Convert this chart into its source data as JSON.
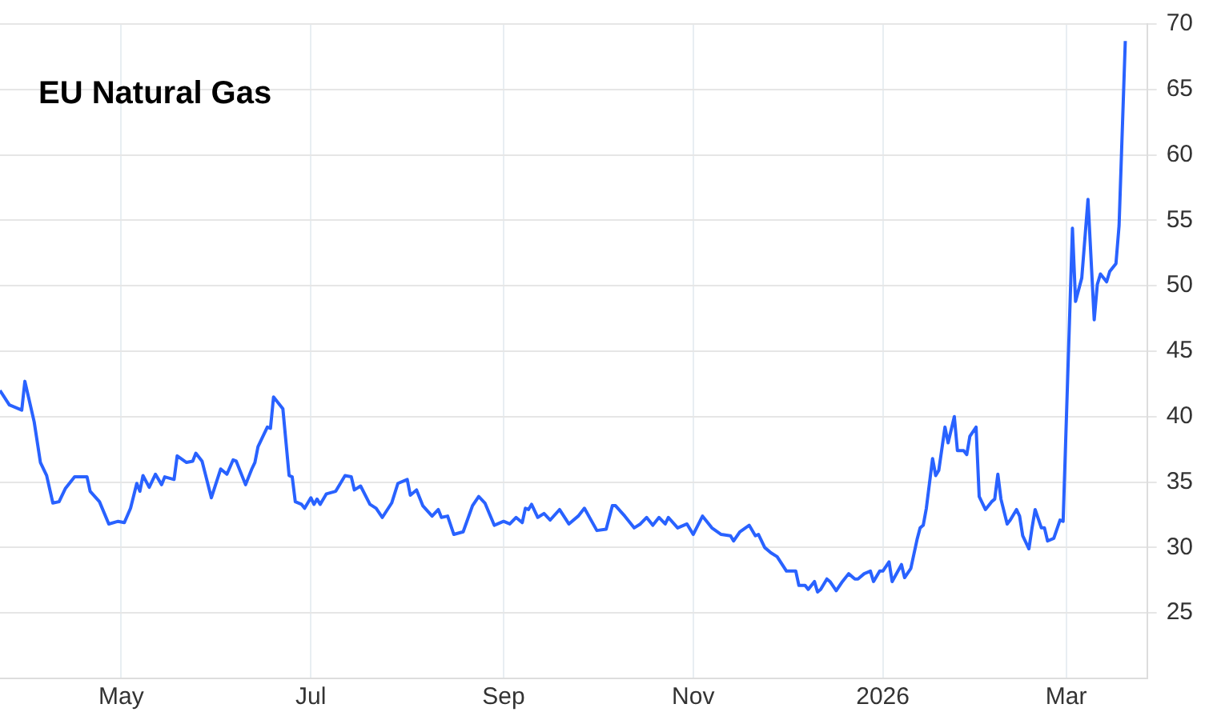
{
  "chart_data": {
    "type": "line",
    "title": "EU Natural Gas",
    "x": [
      "2025-03-23",
      "2025-03-26",
      "2025-03-30",
      "2025-03-31",
      "2025-04-03",
      "2025-04-05",
      "2025-04-07",
      "2025-04-09",
      "2025-04-11",
      "2025-04-13",
      "2025-04-16",
      "2025-04-20",
      "2025-04-21",
      "2025-04-24",
      "2025-04-27",
      "2025-04-30",
      "2025-05-02",
      "2025-05-04",
      "2025-05-06",
      "2025-05-07",
      "2025-05-08",
      "2025-05-10",
      "2025-05-12",
      "2025-05-14",
      "2025-05-15",
      "2025-05-18",
      "2025-05-19",
      "2025-05-22",
      "2025-05-24",
      "2025-05-25",
      "2025-05-27",
      "2025-05-30",
      "2025-06-02",
      "2025-06-04",
      "2025-06-06",
      "2025-06-07",
      "2025-06-10",
      "2025-06-12",
      "2025-06-13",
      "2025-06-14",
      "2025-06-17",
      "2025-06-18",
      "2025-06-19",
      "2025-06-22",
      "2025-06-24",
      "2025-06-25",
      "2025-06-26",
      "2025-06-28",
      "2025-06-29",
      "2025-07-01",
      "2025-07-02",
      "2025-07-03",
      "2025-07-04",
      "2025-07-06",
      "2025-07-09",
      "2025-07-12",
      "2025-07-14",
      "2025-07-15",
      "2025-07-17",
      "2025-07-20",
      "2025-07-22",
      "2025-07-24",
      "2025-07-27",
      "2025-07-29",
      "2025-08-01",
      "2025-08-02",
      "2025-08-04",
      "2025-08-06",
      "2025-08-09",
      "2025-08-11",
      "2025-08-12",
      "2025-08-14",
      "2025-08-16",
      "2025-08-19",
      "2025-08-22",
      "2025-08-24",
      "2025-08-26",
      "2025-08-29",
      "2025-09-01",
      "2025-09-03",
      "2025-09-05",
      "2025-09-07",
      "2025-09-08",
      "2025-09-09",
      "2025-09-10",
      "2025-09-12",
      "2025-09-14",
      "2025-09-16",
      "2025-09-19",
      "2025-09-22",
      "2025-09-25",
      "2025-09-27",
      "2025-10-01",
      "2025-10-04",
      "2025-10-06",
      "2025-10-07",
      "2025-10-10",
      "2025-10-13",
      "2025-10-15",
      "2025-10-17",
      "2025-10-19",
      "2025-10-21",
      "2025-10-23",
      "2025-10-24",
      "2025-10-27",
      "2025-10-30",
      "2025-11-01",
      "2025-11-04",
      "2025-11-07",
      "2025-11-10",
      "2025-11-13",
      "2025-11-14",
      "2025-11-16",
      "2025-11-19",
      "2025-11-21",
      "2025-11-22",
      "2025-11-24",
      "2025-11-26",
      "2025-11-28",
      "2025-12-01",
      "2025-12-04",
      "2025-12-05",
      "2025-12-07",
      "2025-12-08",
      "2025-12-10",
      "2025-12-11",
      "2025-12-12",
      "2025-12-14",
      "2025-12-15",
      "2025-12-17",
      "2025-12-19",
      "2025-12-21",
      "2025-12-23",
      "2025-12-24",
      "2025-12-26",
      "2025-12-28",
      "2025-12-29",
      "2025-12-31",
      "2026-01-01",
      "2026-01-03",
      "2026-01-04",
      "2026-01-07",
      "2026-01-08",
      "2026-01-10",
      "2026-01-12",
      "2026-01-13",
      "2026-01-14",
      "2026-01-15",
      "2026-01-17",
      "2026-01-18",
      "2026-01-19",
      "2026-01-21",
      "2026-01-22",
      "2026-01-24",
      "2026-01-25",
      "2026-01-27",
      "2026-01-28",
      "2026-01-29",
      "2026-01-31",
      "2026-02-01",
      "2026-02-03",
      "2026-02-05",
      "2026-02-06",
      "2026-02-07",
      "2026-02-08",
      "2026-02-10",
      "2026-02-11",
      "2026-02-13",
      "2026-02-14",
      "2026-02-15",
      "2026-02-17",
      "2026-02-18",
      "2026-02-19",
      "2026-02-21",
      "2026-02-22",
      "2026-02-23",
      "2026-02-25",
      "2026-02-27",
      "2026-02-28",
      "2026-03-03",
      "2026-03-04",
      "2026-03-06",
      "2026-03-08",
      "2026-03-10",
      "2026-03-11",
      "2026-03-12",
      "2026-03-14",
      "2026-03-15",
      "2026-03-17",
      "2026-03-18",
      "2026-03-20"
    ],
    "series": [
      {
        "color": "#2962ff",
        "values": [
          42.0,
          40.9,
          40.5,
          42.7,
          39.6,
          36.5,
          35.5,
          33.4,
          33.5,
          34.5,
          35.4,
          35.4,
          34.3,
          33.5,
          31.8,
          32.0,
          31.9,
          33.0,
          34.9,
          34.3,
          35.5,
          34.6,
          35.6,
          34.8,
          35.4,
          35.2,
          37.0,
          36.5,
          36.6,
          37.2,
          36.6,
          33.8,
          36.0,
          35.6,
          36.7,
          36.6,
          34.8,
          36.0,
          36.5,
          37.7,
          39.2,
          39.1,
          41.5,
          40.6,
          35.5,
          35.4,
          33.5,
          33.3,
          33.0,
          33.8,
          33.3,
          33.7,
          33.3,
          34.1,
          34.3,
          35.5,
          35.4,
          34.4,
          34.7,
          33.3,
          33.0,
          32.3,
          33.4,
          34.9,
          35.2,
          34.0,
          34.4,
          33.2,
          32.4,
          32.9,
          32.3,
          32.4,
          31.0,
          31.2,
          33.2,
          33.9,
          33.4,
          31.7,
          32.0,
          31.8,
          32.3,
          31.9,
          33.0,
          32.9,
          33.3,
          32.3,
          32.6,
          32.1,
          32.9,
          31.8,
          32.4,
          33.0,
          31.3,
          31.4,
          33.2,
          33.2,
          32.4,
          31.5,
          31.8,
          32.3,
          31.7,
          32.3,
          31.8,
          32.3,
          31.5,
          31.8,
          31.0,
          32.4,
          31.5,
          31.0,
          30.9,
          30.5,
          31.2,
          31.7,
          30.9,
          31.0,
          30.0,
          29.6,
          29.3,
          28.2,
          28.2,
          27.1,
          27.1,
          26.8,
          27.4,
          26.6,
          26.8,
          27.6,
          27.4,
          26.7,
          27.4,
          28.0,
          27.6,
          27.6,
          28.0,
          28.2,
          27.4,
          28.2,
          28.2,
          28.9,
          27.4,
          28.7,
          27.7,
          28.4,
          30.6,
          31.5,
          31.7,
          33.0,
          36.8,
          35.5,
          35.9,
          39.2,
          38.0,
          40.0,
          37.4,
          37.4,
          37.1,
          38.5,
          39.2,
          33.9,
          32.9,
          33.5,
          33.7,
          35.6,
          33.7,
          31.8,
          32.1,
          32.9,
          32.4,
          30.9,
          29.9,
          31.5,
          32.9,
          31.5,
          31.5,
          30.5,
          30.7,
          32.1,
          32.0,
          54.4,
          48.8,
          50.6,
          56.6,
          47.4,
          50.1,
          50.9,
          50.3,
          51.1,
          51.7,
          54.6,
          68.7
        ]
      }
    ],
    "xlim": [
      "2025-03-23",
      "2026-03-27"
    ],
    "xticks": [
      {
        "value": "2025-05-01",
        "label": "May"
      },
      {
        "value": "2025-07-01",
        "label": "Jul"
      },
      {
        "value": "2025-09-01",
        "label": "Sep"
      },
      {
        "value": "2025-11-01",
        "label": "Nov"
      },
      {
        "value": "2026-01-01",
        "label": "2026"
      },
      {
        "value": "2026-03-01",
        "label": "Mar"
      }
    ],
    "ylim": [
      20,
      70
    ],
    "yticks": [
      25,
      30,
      35,
      40,
      45,
      50,
      55,
      60,
      65,
      70
    ],
    "grid": true,
    "legend": false,
    "marker": "none",
    "line_style": "solid"
  }
}
